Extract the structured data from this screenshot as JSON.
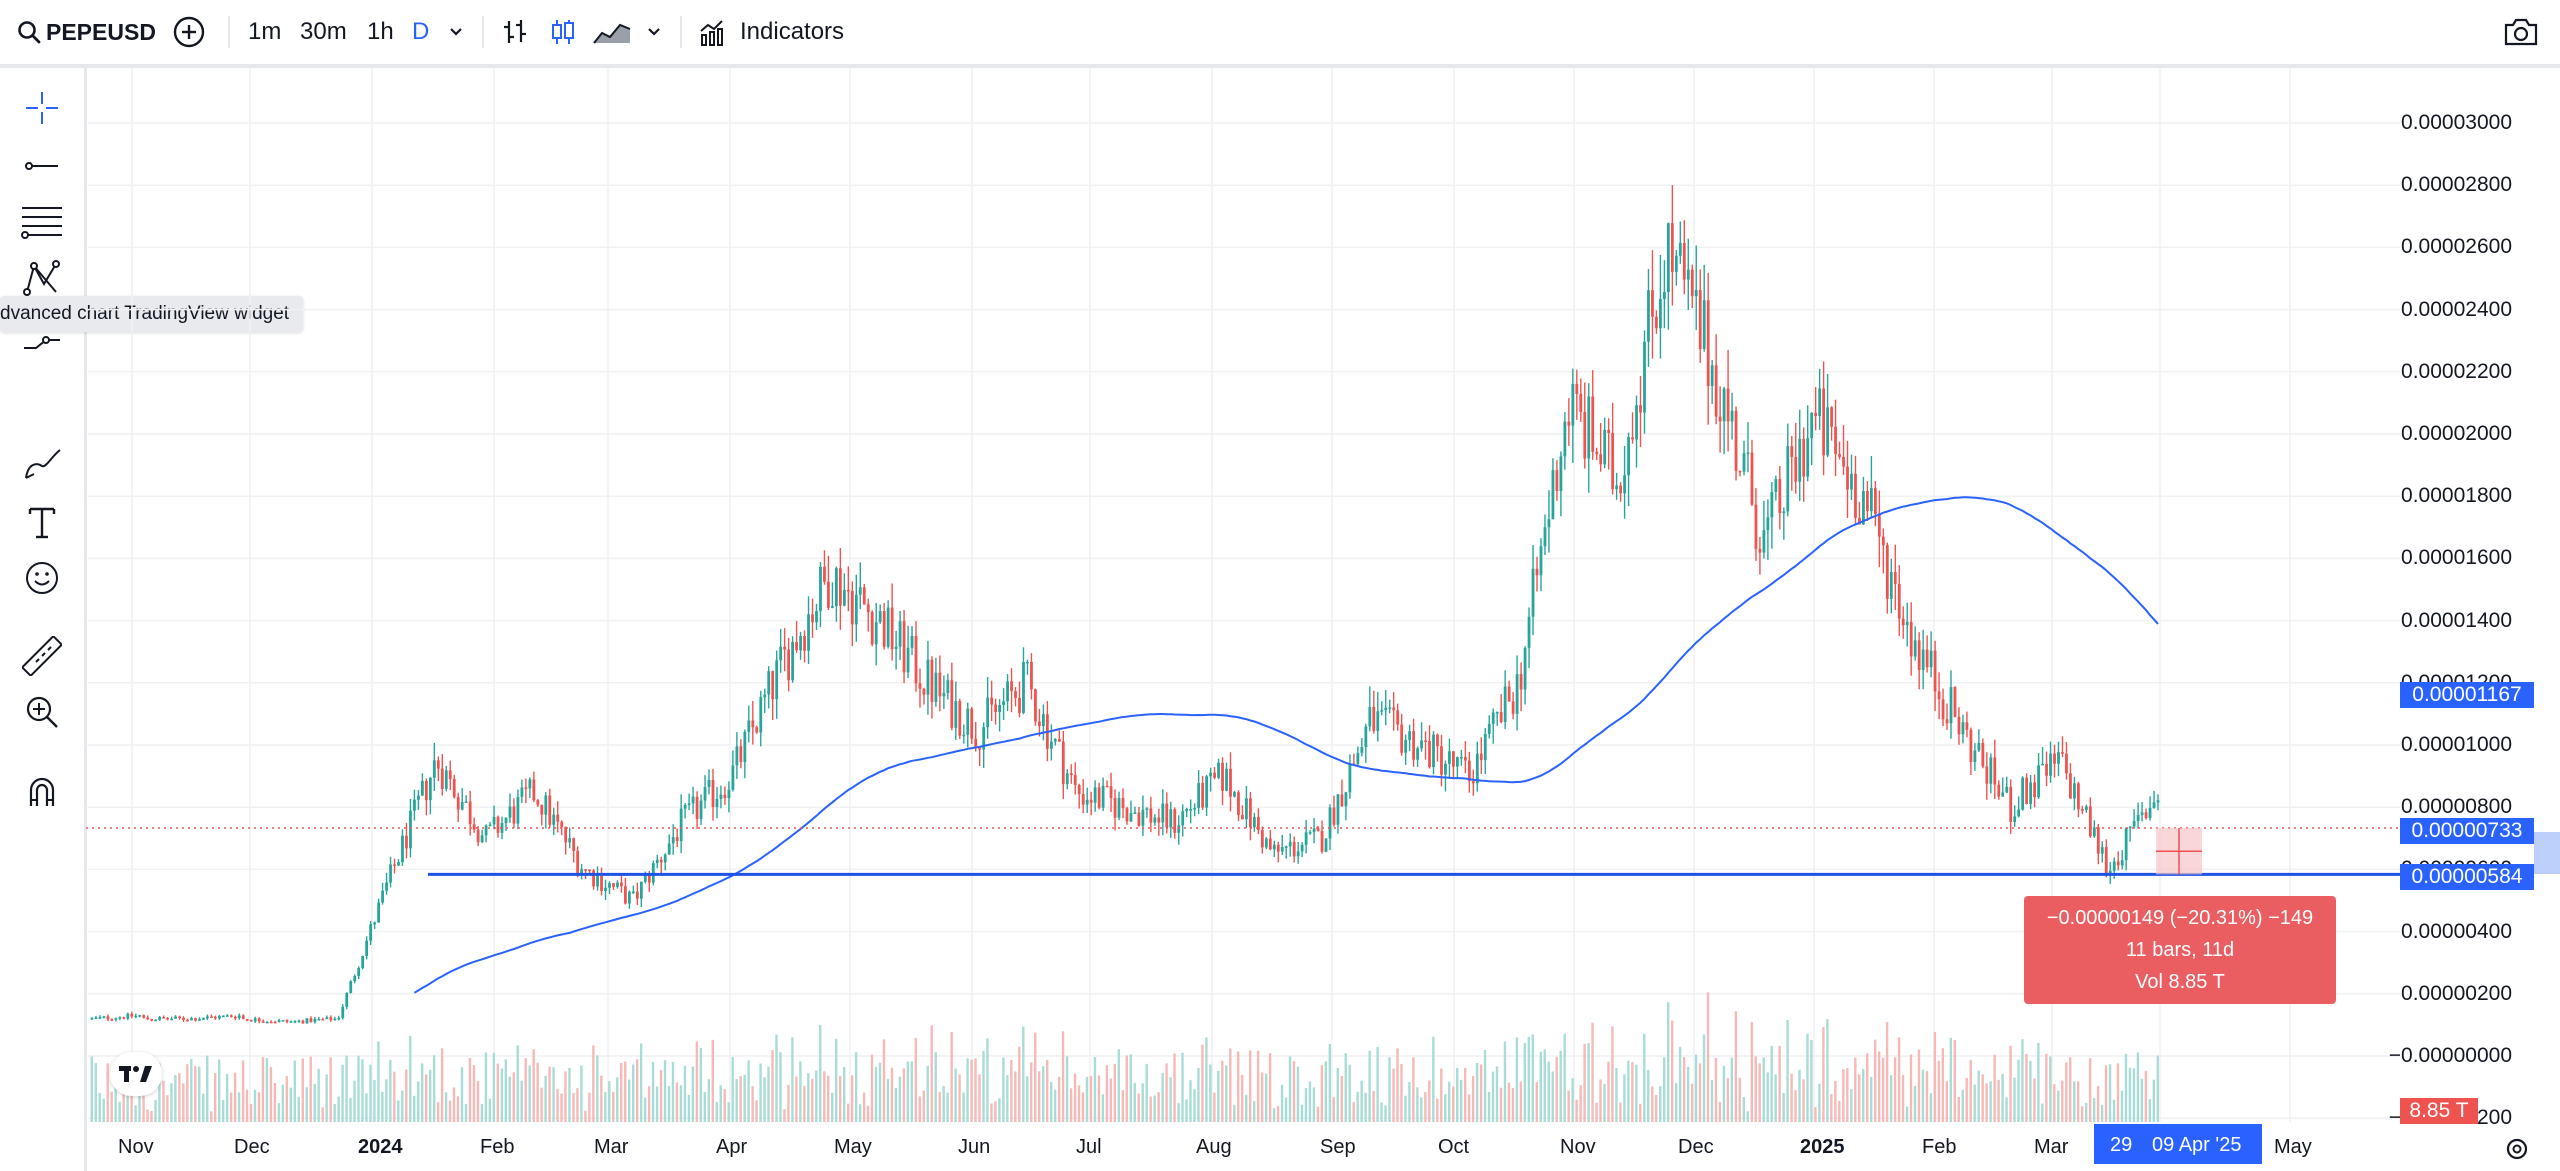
{
  "toolbar": {
    "symbol": "PEPEUSD",
    "intervals": [
      "1m",
      "30m",
      "1h",
      "D"
    ],
    "active_interval": "D",
    "indicators_label": "Indicators",
    "icons": [
      "search-icon",
      "add-symbol-icon",
      "chevron-down-icon",
      "bars-icon",
      "candles-icon",
      "area-icon",
      "chevron-down-icon",
      "indicators-icon",
      "camera-icon"
    ]
  },
  "left_tools": [
    "crosshair-icon",
    "trend-line-icon",
    "fib-icon",
    "pattern-icon",
    "prediction-icon",
    "brush-icon",
    "text-icon",
    "emoji-icon",
    "ruler-icon",
    "zoom-in-icon",
    "magnet-icon"
  ],
  "tooltip": "dvanced chart TradingView widget",
  "price_axis": {
    "labels": [
      "0.00003000",
      "0.00002800",
      "0.00002600",
      "0.00002400",
      "0.00002200",
      "0.00002000",
      "0.00001800",
      "0.00001600",
      "0.00001400",
      "0.00001200",
      "0.00001000",
      "0.00000800",
      "0.00000600",
      "0.00000400",
      "0.00000200",
      "−0.00000000",
      "−0.00000200"
    ],
    "ma_badge": "0.00001167",
    "last_badge": "0.00000733",
    "line_badge": "0.00000584",
    "volume_badge": "8.85 T"
  },
  "time_axis": {
    "labels": [
      "Nov",
      "Dec",
      "2024",
      "Feb",
      "Mar",
      "Apr",
      "May",
      "Jun",
      "Jul",
      "Aug",
      "Sep",
      "Oct",
      "Nov",
      "Dec",
      "2025",
      "Feb",
      "Mar",
      "May"
    ],
    "bold_labels": [
      "2024",
      "2025"
    ],
    "cursor_day": "29",
    "cursor_date": "09 Apr '25"
  },
  "measure": {
    "change": "−0.00000149 (−20.31%) −149",
    "bars": "11 bars, 11d",
    "volume": "Vol 8.85 T"
  },
  "colors": {
    "up": "#26a69a",
    "down": "#ef5350",
    "ma": "#2962ff",
    "hline": "#1e53e5",
    "last": "#ef5350",
    "accent": "#2962ff",
    "measure": "#ea5e62"
  },
  "chart_data": {
    "type": "candlestick",
    "symbol": "PEPEUSD",
    "interval": "D",
    "y_range": [
      -2e-06,
      3e-05
    ],
    "horizontal_line": 5.84e-06,
    "last_price": 7.33e-06,
    "moving_average_last": 1.167e-05,
    "series": [
      {
        "values": [
          [
            1.2e-06,
            1.3e-06
          ],
          [
            1.2e-06,
            1.2e-06
          ],
          [
            1.2e-06,
            1.3e-06
          ],
          [
            1.2e-06,
            1.1e-06
          ],
          [
            1.1e-06,
            1.2e-06
          ],
          [
            1.2e-06,
            5.5e-06
          ],
          [
            5.5e-06,
            9.5e-06
          ],
          [
            9.5e-06,
            7e-06
          ],
          [
            7e-06,
            8.5e-06
          ],
          [
            8.5e-06,
            6e-06
          ],
          [
            6e-06,
            5e-06
          ],
          [
            5e-06,
            7.5e-06
          ],
          [
            7.5e-06,
            9e-06
          ],
          [
            9e-06,
            1.25e-05
          ],
          [
            1.25e-05,
            1.55e-05
          ],
          [
            1.55e-05,
            1.4e-05
          ],
          [
            1.4e-05,
            1.2e-05
          ],
          [
            1.2e-05,
            1.05e-05
          ],
          [
            1.05e-05,
            1.2e-05
          ],
          [
            1.2e-05,
            8.5e-06
          ],
          [
            8.5e-06,
            8e-06
          ],
          [
            8e-06,
            7.5e-06
          ],
          [
            7.5e-06,
            9e-06
          ],
          [
            9e-06,
            6.5e-06
          ],
          [
            6.5e-06,
            7e-06
          ],
          [
            7e-06,
            1.08e-05
          ],
          [
            1.08e-05,
            1e-05
          ],
          [
            1e-05,
            9e-06
          ],
          [
            9e-06,
            1.2e-05
          ],
          [
            1.2e-05,
            2.1e-05
          ],
          [
            2.1e-05,
            1.85e-05
          ],
          [
            1.85e-05,
            2.6e-05
          ],
          [
            2.6e-05,
            2.2e-05
          ],
          [
            2.2e-05,
            1.65e-05
          ],
          [
            1.65e-05,
            2.05e-05
          ],
          [
            2.05e-05,
            1.8e-05
          ],
          [
            1.8e-05,
            1.35e-05
          ],
          [
            1.35e-05,
            1.05e-05
          ],
          [
            1.05e-05,
            8e-06
          ],
          [
            8e-06,
            9.5e-06
          ],
          [
            9.5e-06,
            6e-06
          ],
          [
            6e-06,
            8.5e-06
          ],
          [
            8.5e-06,
            7.5e-06
          ]
        ]
      }
    ]
  }
}
